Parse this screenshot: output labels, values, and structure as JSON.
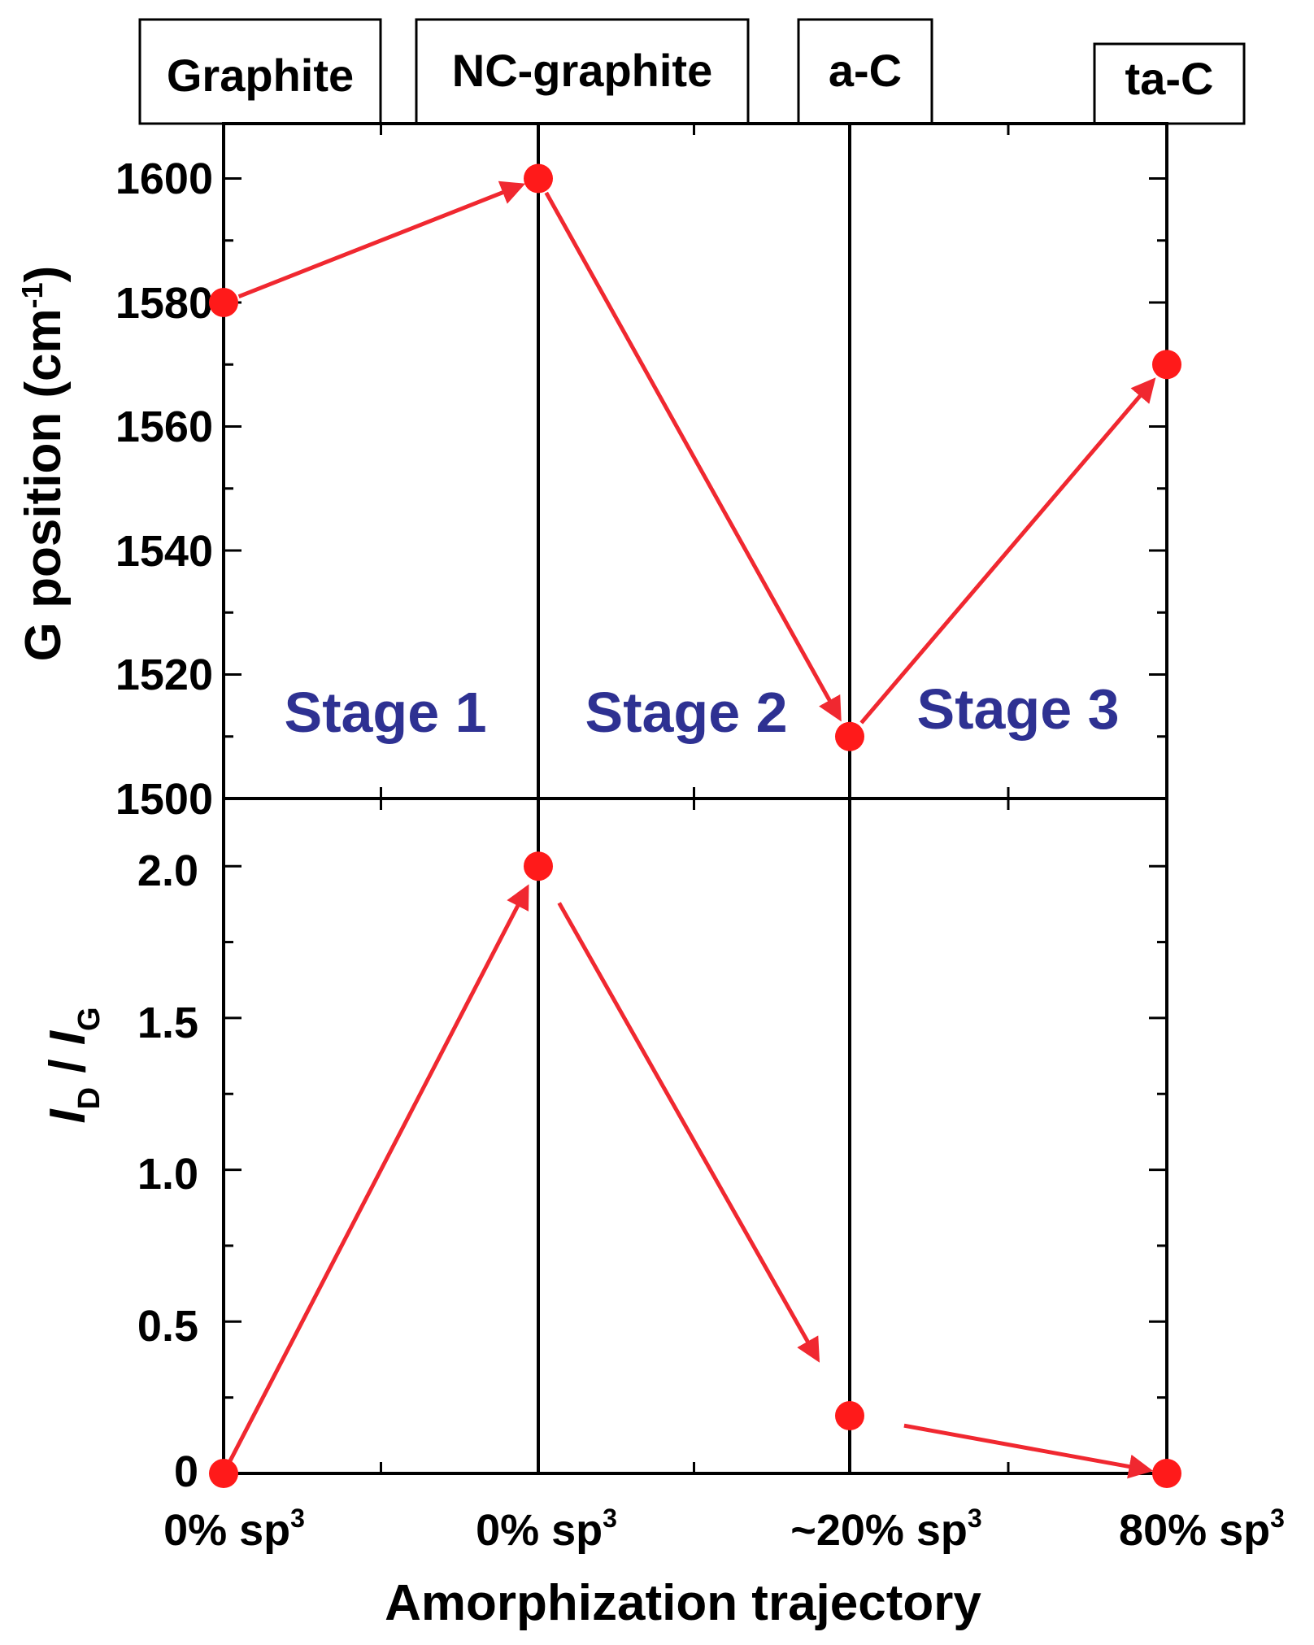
{
  "chart_data": {
    "type": "line",
    "phase_labels": [
      "Graphite",
      "NC-graphite",
      "a-C",
      "ta-C"
    ],
    "x_tick_labels": [
      {
        "base": "0% sp",
        "sup": "3"
      },
      {
        "base": "0% sp",
        "sup": "3"
      },
      {
        "base": "~20% sp",
        "sup": "3"
      },
      {
        "base": "80% sp",
        "sup": "3"
      }
    ],
    "xlabel": "Amorphization trajectory",
    "stages": [
      "Stage 1",
      "Stage 2",
      "Stage 3"
    ],
    "colors": {
      "marker": "#ff1a1a",
      "arrow": "#f02830",
      "stage_text": "#2e3192",
      "axis": "#000000"
    },
    "panels": [
      {
        "name": "g-position",
        "ylabel": {
          "base": "G position (cm",
          "sup": "-1",
          "end": ")"
        },
        "ylim": [
          1500,
          1600
        ],
        "ticks": [
          "1500",
          "1520",
          "1540",
          "1560",
          "1580",
          "1600"
        ],
        "tick_values": [
          1500,
          1520,
          1540,
          1560,
          1580,
          1600
        ],
        "x": [
          0,
          1,
          2,
          3
        ],
        "values": [
          1580,
          1600,
          1510,
          1570
        ]
      },
      {
        "name": "id-ig-ratio",
        "ylabel": {
          "i1": "I",
          "sub1": "D",
          "mid": " / ",
          "i2": "I",
          "sub2": "G"
        },
        "ylim": [
          0,
          2.2
        ],
        "ticks": [
          "0",
          "0.5",
          "1.0",
          "1.5",
          "2.0"
        ],
        "tick_values": [
          0,
          0.5,
          1.0,
          1.5,
          2.0
        ],
        "x": [
          0,
          1,
          2,
          3
        ],
        "values": [
          0,
          2.0,
          0.19,
          0
        ]
      }
    ]
  }
}
